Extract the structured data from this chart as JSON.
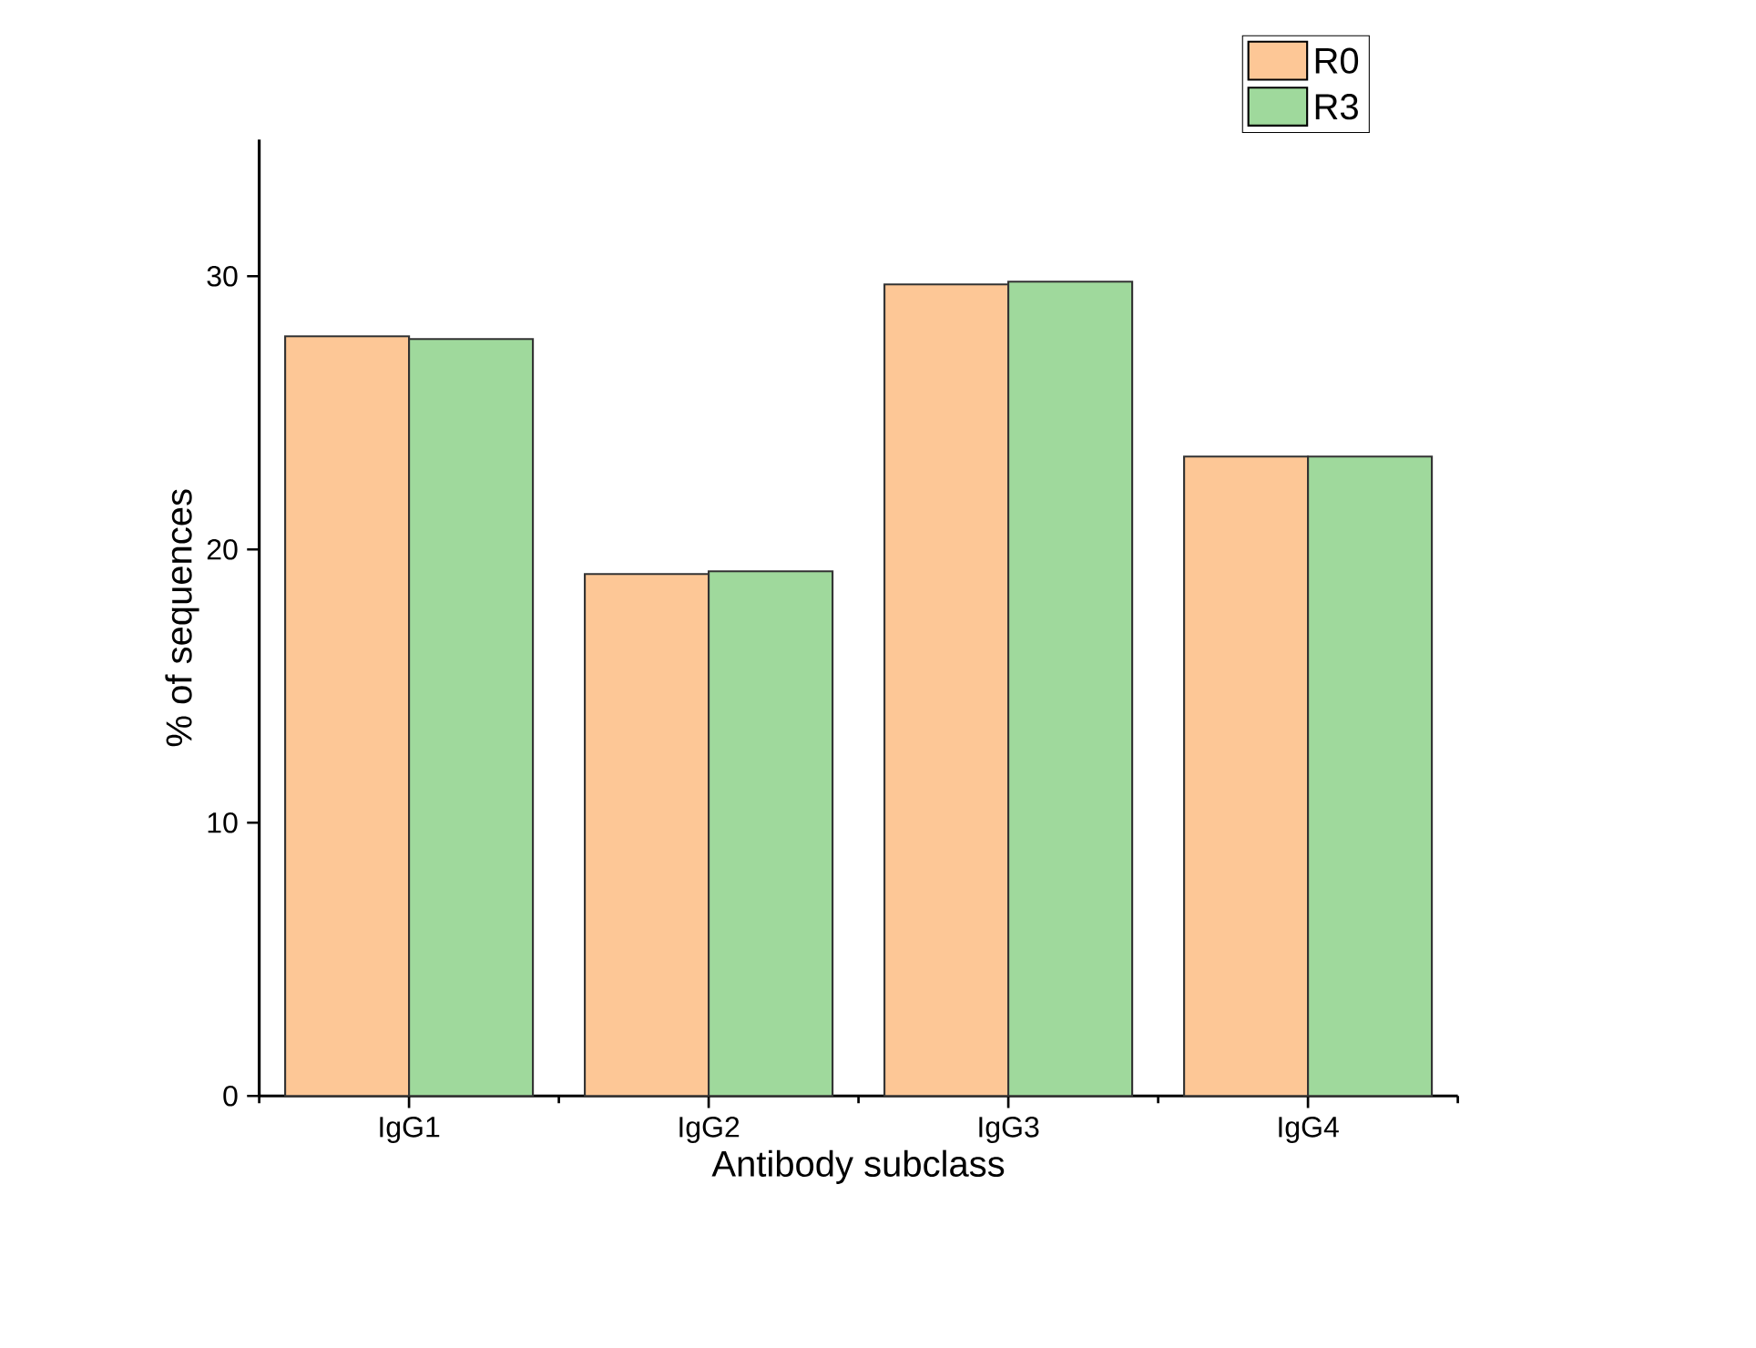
{
  "chart_data": {
    "type": "bar",
    "xlabel": "Antibody subclass",
    "ylabel": "% of sequences",
    "categories": [
      "IgG1",
      "IgG2",
      "IgG3",
      "IgG4"
    ],
    "series": [
      {
        "name": "R0",
        "color": "#fdc796",
        "values": [
          27.8,
          19.1,
          29.7,
          23.4
        ]
      },
      {
        "name": "R3",
        "color": "#9fd99c",
        "values": [
          27.7,
          19.2,
          29.8,
          23.4
        ]
      }
    ],
    "ylim": [
      0,
      35
    ],
    "yticks": [
      0,
      10,
      20,
      30
    ],
    "grid": false,
    "legend": "top right"
  }
}
